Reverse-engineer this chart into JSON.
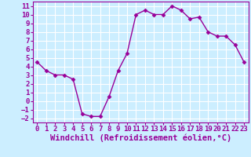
{
  "x": [
    0,
    1,
    2,
    3,
    4,
    5,
    6,
    7,
    8,
    9,
    10,
    11,
    12,
    13,
    14,
    15,
    16,
    17,
    18,
    19,
    20,
    21,
    22,
    23
  ],
  "y": [
    4.5,
    3.5,
    3.0,
    3.0,
    2.5,
    -1.5,
    -1.8,
    -1.8,
    0.5,
    3.5,
    5.5,
    10.0,
    10.5,
    10.0,
    10.0,
    11.0,
    10.5,
    9.5,
    9.7,
    8.0,
    7.5,
    7.5,
    6.5,
    4.5
  ],
  "line_color": "#990099",
  "marker": "D",
  "marker_size": 2.5,
  "xlabel": "Windchill (Refroidissement éolien,°C)",
  "xlabel_fontsize": 7.5,
  "ylim": [
    -2.5,
    11.5
  ],
  "xlim": [
    -0.5,
    23.5
  ],
  "yticks": [
    -2,
    -1,
    0,
    1,
    2,
    3,
    4,
    5,
    6,
    7,
    8,
    9,
    10,
    11
  ],
  "xticks": [
    0,
    1,
    2,
    3,
    4,
    5,
    6,
    7,
    8,
    9,
    10,
    11,
    12,
    13,
    14,
    15,
    16,
    17,
    18,
    19,
    20,
    21,
    22,
    23
  ],
  "bg_color": "#cceeff",
  "grid_color": "#ffffff",
  "tick_fontsize": 6.5,
  "line_width": 1.0
}
